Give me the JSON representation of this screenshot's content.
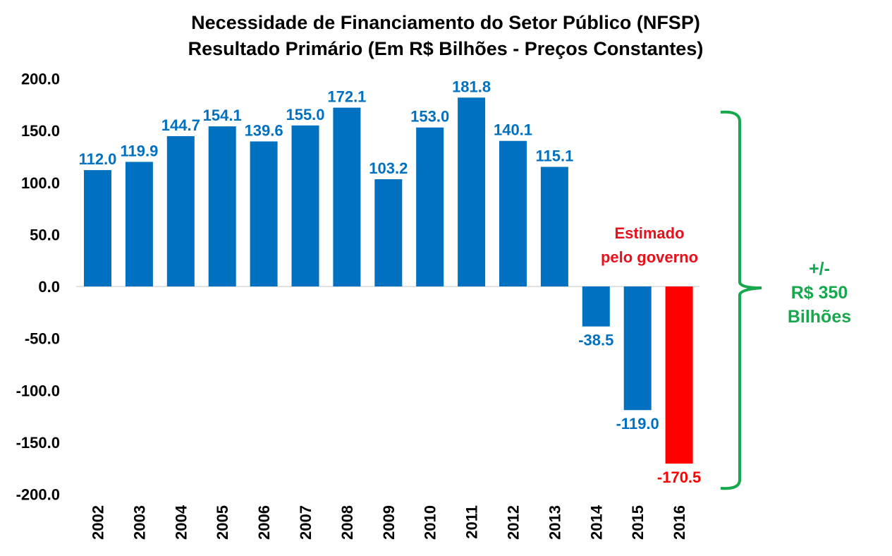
{
  "chart_data": {
    "type": "bar",
    "title": "Necessidade de Financiamento do Setor Público (NFSP)",
    "subtitle": "Resultado Primário (Em R$ Bilhões - Preços Constantes)",
    "xlabel": "",
    "ylabel": "",
    "ylim": [
      -200,
      200
    ],
    "yticks": [
      "200.0",
      "150.0",
      "100.0",
      "50.0",
      "0.0",
      "-50.0",
      "-100.0",
      "-150.0",
      "-200.0"
    ],
    "grid": false,
    "categories": [
      "2002",
      "2003",
      "2004",
      "2005",
      "2006",
      "2007",
      "2008",
      "2009",
      "2010",
      "2011",
      "2012",
      "2013",
      "2014",
      "2015",
      "2016"
    ],
    "values": [
      112.0,
      119.9,
      144.7,
      154.1,
      139.6,
      155.0,
      172.1,
      103.2,
      153.0,
      181.8,
      140.1,
      115.1,
      -38.5,
      -119.0,
      -170.5
    ],
    "data_labels": [
      "112.0",
      "119.9",
      "144.7",
      "154.1",
      "139.6",
      "155.0",
      "172.1",
      "103.2",
      "153.0",
      "181.8",
      "140.1",
      "115.1",
      "-38.5",
      "-119.0",
      "-170.5"
    ],
    "estimated": [
      false,
      false,
      false,
      false,
      false,
      false,
      false,
      false,
      false,
      false,
      false,
      false,
      false,
      false,
      true
    ],
    "colors": {
      "actual": "#0070C0",
      "estimated": "#FF0000",
      "brace": "#16A84D"
    },
    "annotations": {
      "estimate_note": [
        "Estimado",
        "pelo governo"
      ],
      "brace_note": [
        "+/-",
        "R$ 350",
        "Bilhões"
      ]
    }
  }
}
